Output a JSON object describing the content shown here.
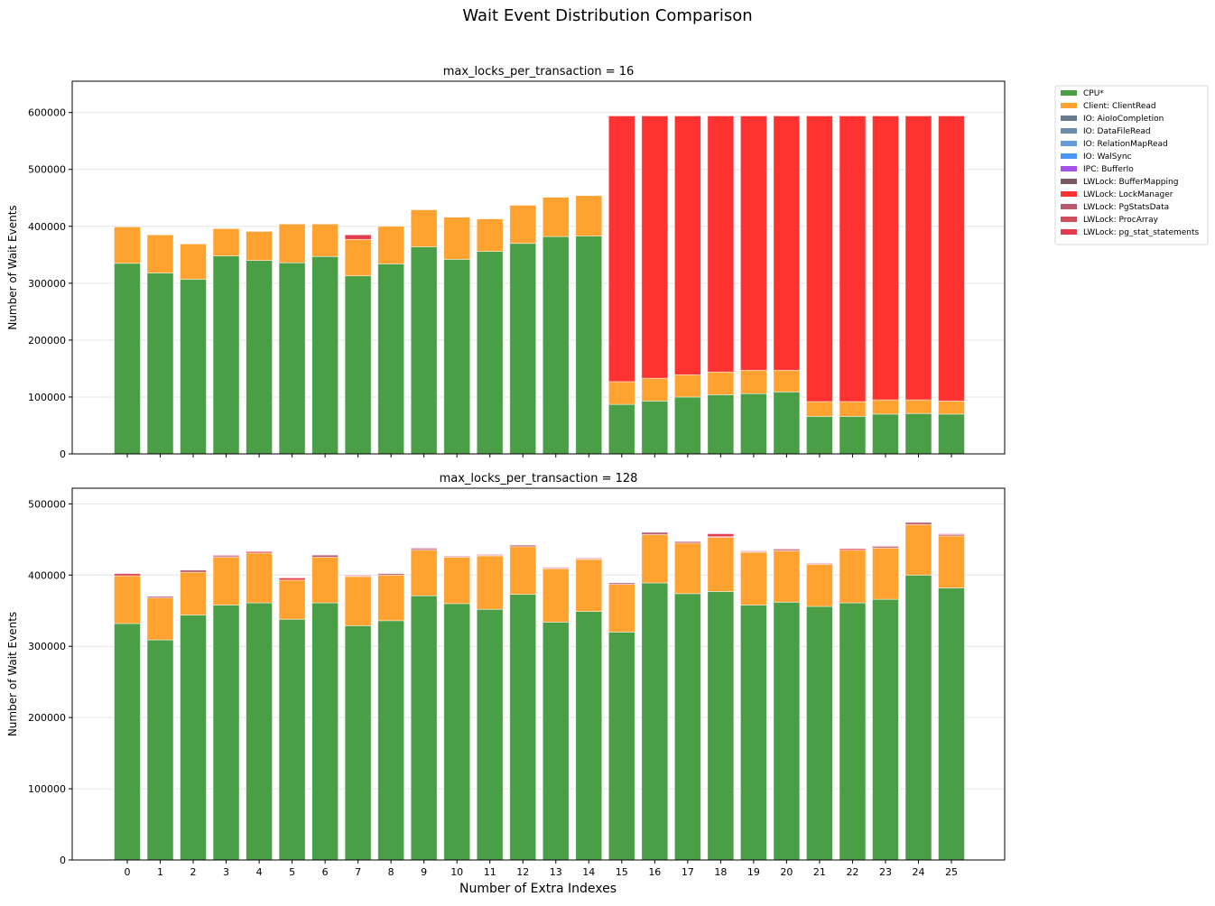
{
  "chart_data": {
    "title": "Wait Event Distribution Comparison",
    "type": "bar",
    "stacked": true,
    "legend": {
      "placement": "top-right, outside",
      "entries": [
        {
          "name": "CPU*",
          "color": "#4a9e46"
        },
        {
          "name": "Client: ClientRead",
          "color": "#ffa22f"
        },
        {
          "name": "IO: AioIoCompletion",
          "color": "#6a7b8b"
        },
        {
          "name": "IO: DataFileRead",
          "color": "#6a8cac"
        },
        {
          "name": "IO: RelationMapRead",
          "color": "#659ad6"
        },
        {
          "name": "IO: WalSync",
          "color": "#4a96f6"
        },
        {
          "name": "IPC: BufferIo",
          "color": "#a452ea"
        },
        {
          "name": "LWLock: BufferMapping",
          "color": "#7a5a62"
        },
        {
          "name": "LWLock: LockManager",
          "color": "#ff3232"
        },
        {
          "name": "LWLock: PgStatsData",
          "color": "#b65a6e"
        },
        {
          "name": "LWLock: ProcArray",
          "color": "#d04e60"
        },
        {
          "name": "LWLock: pg_stat_statements",
          "color": "#e23c4e"
        }
      ]
    },
    "xlabel": "Number of Extra Indexes",
    "categories": [
      "0",
      "1",
      "2",
      "3",
      "4",
      "5",
      "6",
      "7",
      "8",
      "9",
      "10",
      "11",
      "12",
      "13",
      "14",
      "15",
      "16",
      "17",
      "18",
      "19",
      "20",
      "21",
      "22",
      "23",
      "24",
      "25"
    ],
    "subplots": [
      {
        "title": "max_locks_per_transaction = 16",
        "ylabel": "Number of Wait Events",
        "ylim": [
          0,
          655000
        ],
        "yticks": [
          0,
          100000,
          200000,
          300000,
          400000,
          500000,
          600000
        ],
        "grid": "y",
        "series": [
          {
            "name": "CPU*",
            "values": [
              335000,
              318000,
              307000,
              348000,
              340000,
              336000,
              347000,
              313000,
              334000,
              364000,
              342000,
              356000,
              370000,
              382000,
              383000,
              87000,
              93000,
              100000,
              104000,
              106000,
              109000,
              66000,
              66000,
              70000,
              71000,
              70000
            ]
          },
          {
            "name": "Client: ClientRead",
            "values": [
              64000,
              67000,
              62000,
              48000,
              51000,
              68000,
              57000,
              64000,
              66000,
              65000,
              74000,
              57000,
              67000,
              69000,
              71000,
              40000,
              40000,
              39000,
              40000,
              41000,
              38000,
              26000,
              26000,
              25000,
              24000,
              23000
            ]
          },
          {
            "name": "LWLock: LockManager",
            "values": [
              0,
              0,
              0,
              0,
              0,
              0,
              0,
              0,
              0,
              0,
              0,
              0,
              0,
              0,
              0,
              467000,
              461000,
              455000,
              450000,
              447000,
              447000,
              502000,
              502000,
              499000,
              499000,
              501000
            ]
          },
          {
            "name": "LWLock: pg_stat_statements",
            "values": [
              0,
              0,
              0,
              0,
              0,
              0,
              0,
              8000,
              0,
              0,
              0,
              0,
              0,
              0,
              0,
              0,
              0,
              0,
              0,
              0,
              0,
              0,
              0,
              0,
              0,
              0
            ]
          }
        ]
      },
      {
        "title": "max_locks_per_transaction = 128",
        "ylabel": "Number of Wait Events",
        "ylim": [
          0,
          522000
        ],
        "yticks": [
          0,
          100000,
          200000,
          300000,
          400000,
          500000
        ],
        "grid": "y",
        "series": [
          {
            "name": "CPU*",
            "values": [
              332000,
              309000,
              344000,
              358000,
              361000,
              338000,
              361000,
              329000,
              336000,
              371000,
              360000,
              352000,
              373000,
              334000,
              349000,
              320000,
              389000,
              374000,
              377000,
              358000,
              362000,
              356000,
              361000,
              366000,
              400000,
              382000
            ]
          },
          {
            "name": "Client: ClientRead",
            "values": [
              67000,
              59000,
              60000,
              67000,
              70000,
              55000,
              64000,
              69000,
              64000,
              64000,
              65000,
              75000,
              67000,
              75000,
              73000,
              67000,
              68000,
              71000,
              76000,
              74000,
              72000,
              59000,
              74000,
              72000,
              71000,
              73000
            ]
          },
          {
            "name": "LWLock: PgStatsData",
            "values": [
              0,
              2000,
              3000,
              2000,
              0,
              0,
              3000,
              1000,
              2000,
              2000,
              1000,
              1000,
              2000,
              1000,
              1000,
              2000,
              3000,
              2000,
              1000,
              1000,
              2000,
              1000,
              0,
              2000,
              3000,
              2000
            ]
          },
          {
            "name": "LWLock: pg_stat_statements",
            "values": [
              3000,
              0,
              0,
              1000,
              2000,
              3000,
              0,
              1000,
              0,
              1000,
              1000,
              1000,
              0,
              1000,
              1000,
              0,
              0,
              0,
              4000,
              1000,
              1000,
              1000,
              2000,
              1000,
              0,
              1000
            ]
          }
        ]
      }
    ]
  }
}
